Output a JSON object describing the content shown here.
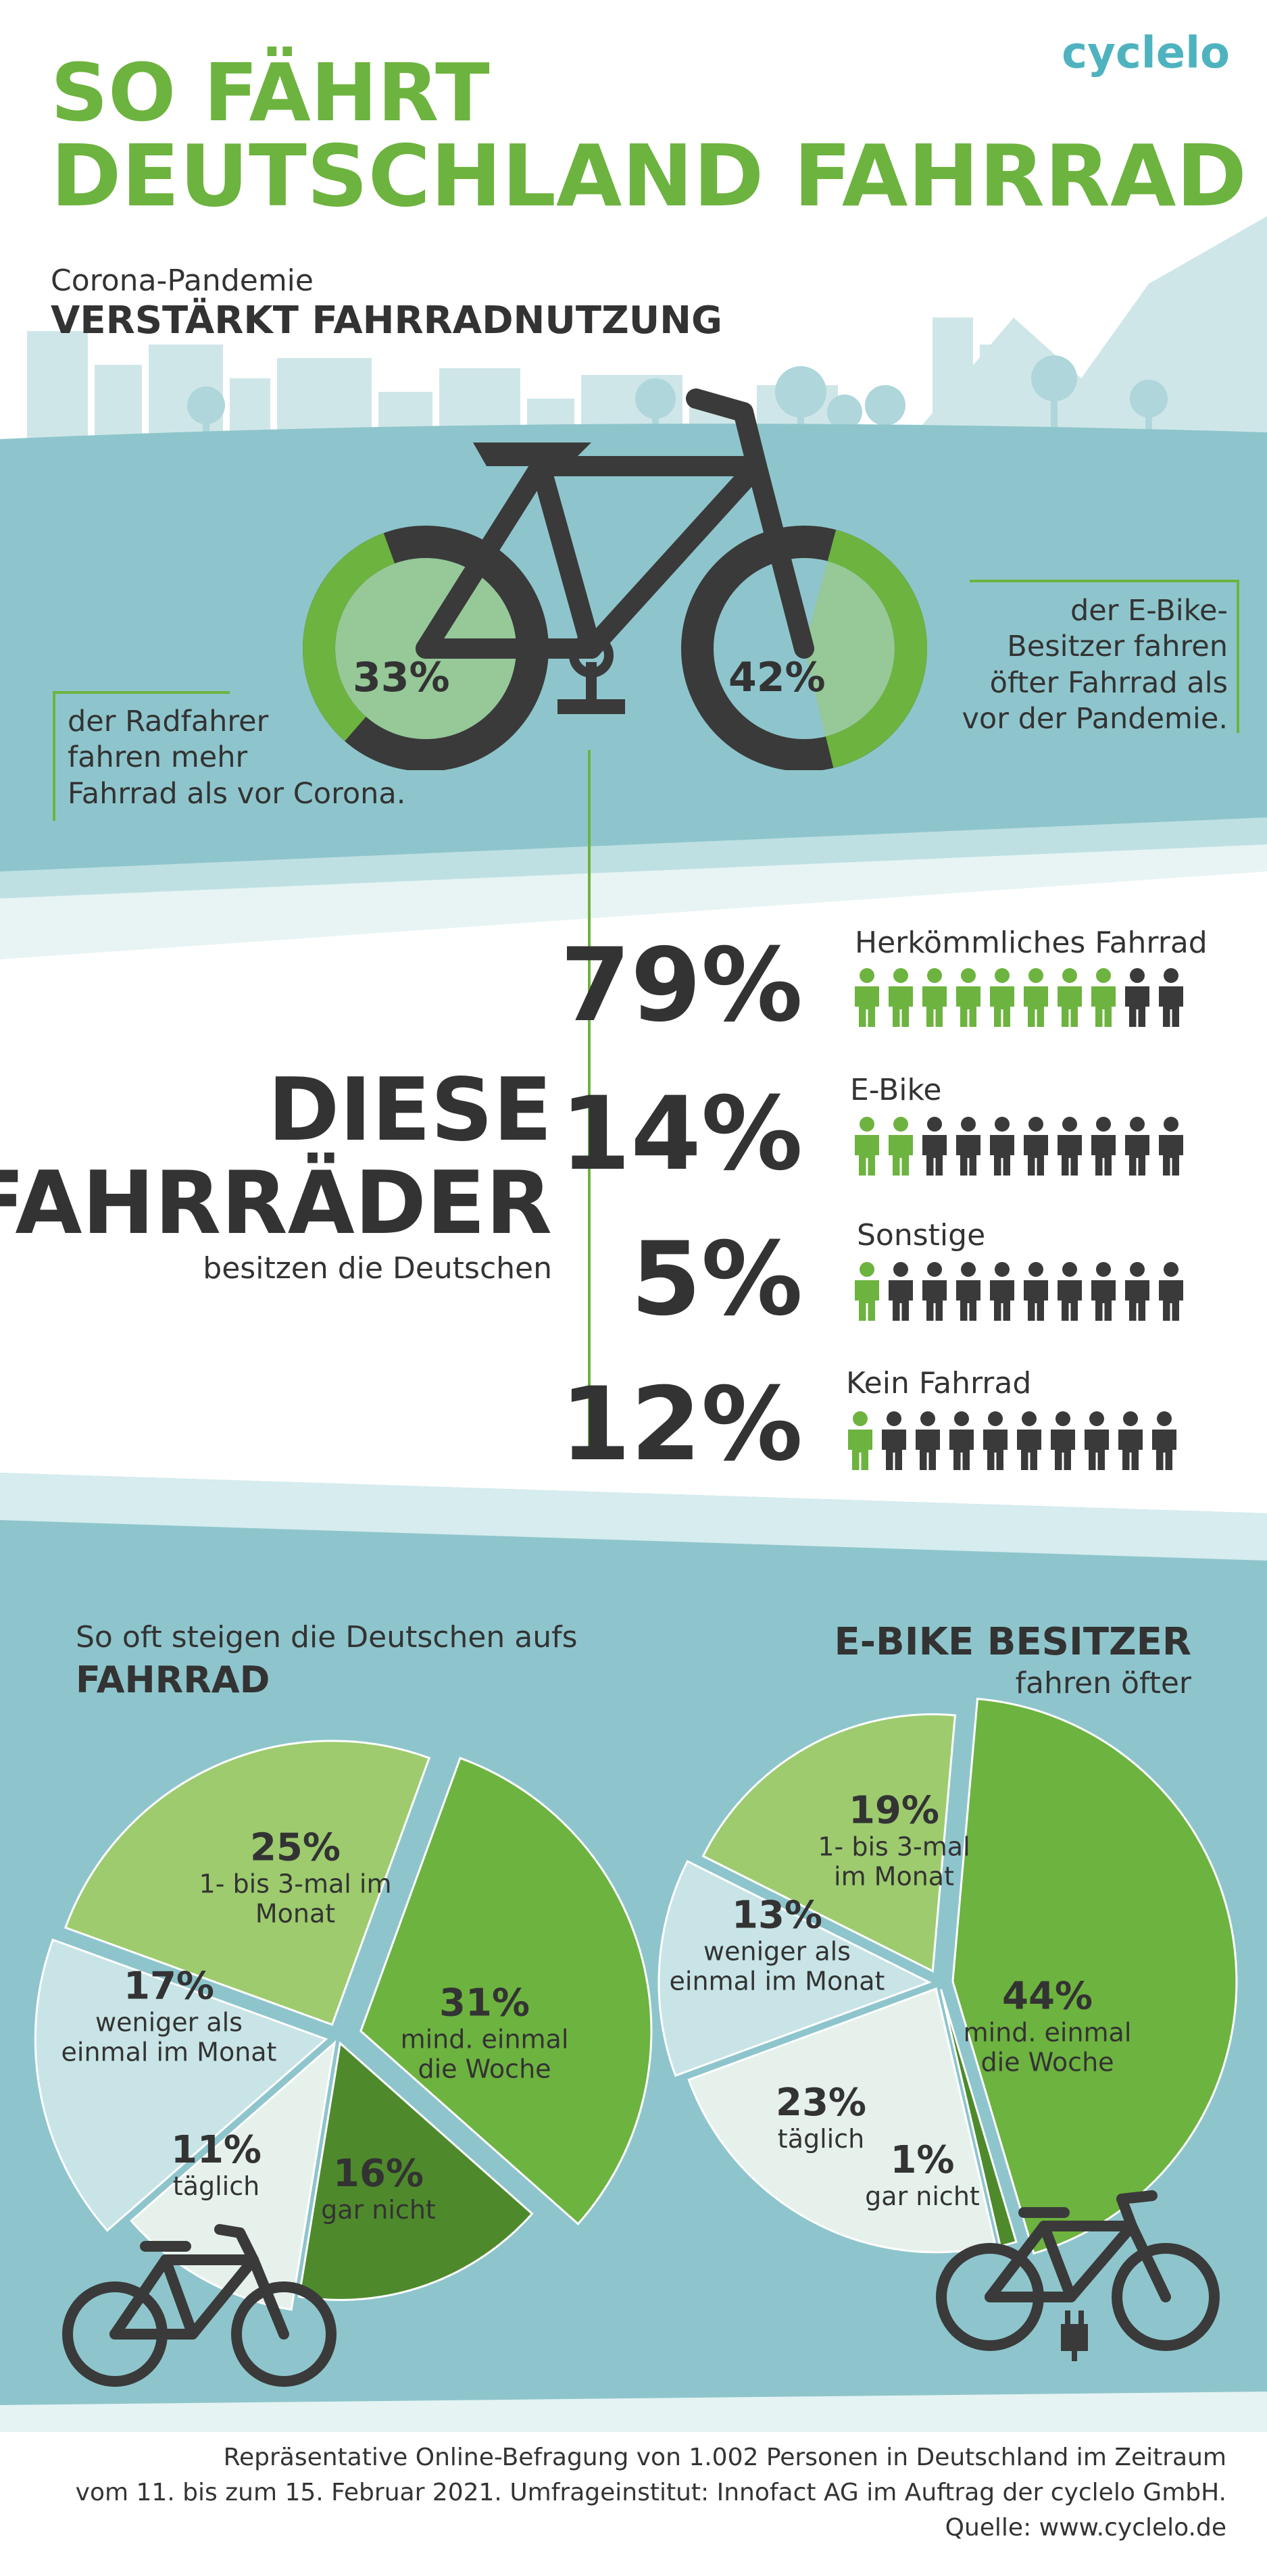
{
  "header": {
    "title_line1": "SO FÄHRT",
    "title_line2": "DEUTSCHLAND FAHRRAD",
    "logo": "cyclelo"
  },
  "corona": {
    "subtitle": "Corona-Pandemie",
    "headline": "VERSTÄRKT FAHRRADNUTZUNG",
    "left_pct": "33%",
    "left_value": 33,
    "left_note": [
      "der Radfahrer",
      "fahren mehr",
      "Fahrrad als vor Corona."
    ],
    "right_pct": "42%",
    "right_value": 42,
    "right_note": [
      "der E-Bike-",
      "Besitzer fahren",
      "öfter Fahrrad als",
      "vor der Pandemie."
    ]
  },
  "ownership": {
    "heading_line1": "DIESE",
    "heading_line2": "FAHRRÄDER",
    "sub": "besitzen die Deutschen",
    "rows": [
      {
        "pct": "79%",
        "label": "Herkömmliches Fahrrad",
        "value": 79,
        "green_icons": 8
      },
      {
        "pct": "14%",
        "label": "E-Bike",
        "value": 14,
        "green_icons": 2
      },
      {
        "pct": "5%",
        "label": "Sonstige",
        "value": 5,
        "green_icons": 1
      },
      {
        "pct": "12%",
        "label": "Kein Fahrrad",
        "value": 12,
        "green_icons": 1
      }
    ]
  },
  "pies": {
    "left_heading1": "So oft steigen die Deutschen aufs",
    "left_heading2": "FAHRRAD",
    "right_heading1": "E-BIKE BESITZER",
    "right_heading2": "fahren öfter"
  },
  "chart_data": [
    {
      "type": "pie",
      "title": "So oft steigen die Deutschen aufs FAHRRAD",
      "slices": [
        {
          "label": "1- bis 3-mal im Monat",
          "value": 25,
          "color": "#9dcb6e"
        },
        {
          "label": "mind. einmal die Woche",
          "value": 31,
          "color": "#6db33f"
        },
        {
          "label": "gar nicht",
          "value": 16,
          "color": "#4e8a2b"
        },
        {
          "label": "täglich",
          "value": 11,
          "color": "#e6f1ec"
        },
        {
          "label": "weniger als einmal im Monat",
          "value": 17,
          "color": "#c8e4e6"
        }
      ]
    },
    {
      "type": "pie",
      "title": "E-BIKE BESITZER fahren öfter",
      "slices": [
        {
          "label": "mind. einmal die Woche",
          "value": 44,
          "color": "#6db33f"
        },
        {
          "label": "gar nicht",
          "value": 1,
          "color": "#4e8a2b"
        },
        {
          "label": "täglich",
          "value": 23,
          "color": "#e6f1ec"
        },
        {
          "label": "weniger als einmal im Monat",
          "value": 13,
          "color": "#c8e4e6"
        },
        {
          "label": "1- bis 3-mal im Monat",
          "value": 19,
          "color": "#9dcb6e"
        }
      ]
    }
  ],
  "pie_labels": {
    "left": [
      {
        "pct": "25%",
        "text1": "1- bis 3-mal im",
        "text2": "Monat"
      },
      {
        "pct": "31%",
        "text1": "mind. einmal",
        "text2": "die Woche"
      },
      {
        "pct": "16%",
        "text1": "gar nicht",
        "text2": ""
      },
      {
        "pct": "11%",
        "text1": "täglich",
        "text2": ""
      },
      {
        "pct": "17%",
        "text1": "weniger als",
        "text2": "einmal im Monat"
      }
    ],
    "right": [
      {
        "pct": "44%",
        "text1": "mind. einmal",
        "text2": "die Woche"
      },
      {
        "pct": "1%",
        "text1": "gar nicht",
        "text2": ""
      },
      {
        "pct": "23%",
        "text1": "täglich",
        "text2": ""
      },
      {
        "pct": "13%",
        "text1": "weniger als",
        "text2": "einmal im Monat"
      },
      {
        "pct": "19%",
        "text1": "1- bis 3-mal",
        "text2": "im Monat"
      }
    ]
  },
  "footer": {
    "line1": "Repräsentative Online-Befragung von 1.002 Personen in Deutschland im Zeitraum",
    "line2": "vom 11. bis zum 15. Februar 2021. Umfrageinstitut: Innofact AG im Auftrag der cyclelo GmbH.",
    "line3": "Quelle: www.cyclelo.de"
  },
  "colors": {
    "green": "#6db33f",
    "light_green": "#9dcb6e",
    "dark_green": "#4e8a2b",
    "teal": "#8ec5cc",
    "dark": "#3a3a3a",
    "logo": "#4fb3bf"
  }
}
